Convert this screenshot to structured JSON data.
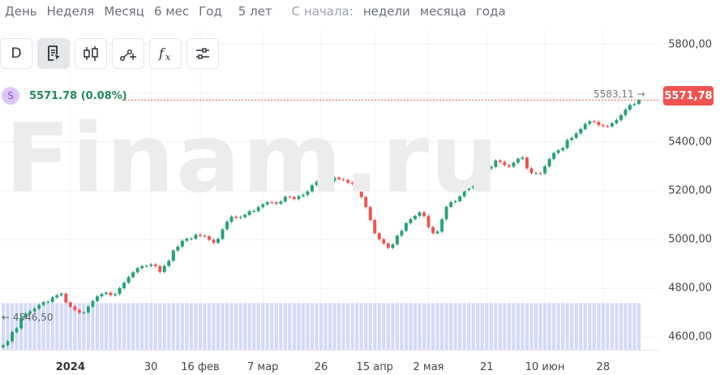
{
  "period_bar": {
    "items": [
      {
        "label": "День",
        "muted": false
      },
      {
        "label": "Неделя",
        "muted": false
      },
      {
        "label": "Месяц",
        "muted": false
      },
      {
        "label": "6 мес",
        "muted": false
      },
      {
        "label": "Год",
        "muted": false
      },
      {
        "label": "5 лет",
        "muted": false
      },
      {
        "label": "С начала:",
        "muted": true
      },
      {
        "label": "недели",
        "muted": false
      },
      {
        "label": "месяца",
        "muted": false
      },
      {
        "label": "года",
        "muted": false
      }
    ]
  },
  "toolbar": {
    "interval_label": "D",
    "tools": [
      {
        "name": "interval-button",
        "icon": "letter-d",
        "active": false
      },
      {
        "name": "template-button",
        "icon": "document-cursor-icon",
        "active": true
      },
      {
        "name": "chart-type-button",
        "icon": "candlestick-icon",
        "active": false
      },
      {
        "name": "drawing-tools-button",
        "icon": "line-plus-icon",
        "active": false
      },
      {
        "name": "indicators-button",
        "icon": "fx-icon",
        "active": false
      },
      {
        "name": "settings-button",
        "icon": "sliders-icon",
        "active": false
      }
    ]
  },
  "watermark": "Finam.ru",
  "legend": {
    "symbol_badge": "S",
    "value": "5571.78 (0.08%)"
  },
  "price_tag": "5571,78",
  "high_label": "5583,11 →",
  "low_label": "← 4546,50",
  "colors": {
    "up": "#26a17a",
    "down": "#ef5350",
    "volume": "#d3d9fa",
    "price_line": "#ef5350",
    "badge_bg": "#dcc8f5"
  },
  "chart_data": {
    "type": "candlestick",
    "ylim": [
      4548,
      5862
    ],
    "y_ticks": [
      "5800,00",
      "5600,00",
      "5400,00",
      "5200,00",
      "5000,00",
      "4800,00",
      "4600,00"
    ],
    "y_tick_values": [
      5800,
      5600,
      5400,
      5200,
      5000,
      4800,
      4600
    ],
    "x_ticks": [
      {
        "label": "2024",
        "index": 15,
        "bold": true
      },
      {
        "label": "30",
        "index": 33,
        "bold": false
      },
      {
        "label": "16 фев",
        "index": 44,
        "bold": false
      },
      {
        "label": "7 мар",
        "index": 58,
        "bold": false
      },
      {
        "label": "26",
        "index": 71,
        "bold": false
      },
      {
        "label": "15 апр",
        "index": 83,
        "bold": false
      },
      {
        "label": "2 мая",
        "index": 95,
        "bold": false
      },
      {
        "label": "21",
        "index": 108,
        "bold": false
      },
      {
        "label": "10 июн",
        "index": 121,
        "bold": false
      },
      {
        "label": "28",
        "index": 134,
        "bold": false
      }
    ],
    "close_values": [
      4567,
      4583,
      4621,
      4636,
      4680,
      4697,
      4706,
      4717,
      4732,
      4743,
      4745,
      4763,
      4772,
      4778,
      4742,
      4725,
      4711,
      4700,
      4701,
      4725,
      4748,
      4767,
      4777,
      4782,
      4772,
      4777,
      4801,
      4823,
      4846,
      4866,
      4883,
      4891,
      4892,
      4898,
      4891,
      4867,
      4892,
      4913,
      4955,
      4971,
      4995,
      5003,
      5004,
      5020,
      5015,
      5013,
      4999,
      4987,
      5003,
      5042,
      5073,
      5094,
      5089,
      5092,
      5101,
      5116,
      5117,
      5133,
      5144,
      5153,
      5152,
      5147,
      5156,
      5175,
      5174,
      5166,
      5178,
      5183,
      5197,
      5223,
      5237,
      5234,
      5232,
      5240,
      5254,
      5247,
      5244,
      5233,
      5228,
      5201,
      5174,
      5133,
      5080,
      5026,
      5001,
      4984,
      4966,
      4980,
      5016,
      5036,
      5067,
      5084,
      5097,
      5111,
      5096,
      5051,
      5026,
      5033,
      5083,
      5134,
      5153,
      5157,
      5177,
      5203,
      5212,
      5218,
      5217,
      5253,
      5291,
      5298,
      5324,
      5318,
      5305,
      5299,
      5315,
      5331,
      5336,
      5292,
      5272,
      5272,
      5271,
      5300,
      5330,
      5355,
      5366,
      5375,
      5408,
      5417,
      5435,
      5453,
      5474,
      5485,
      5482,
      5469,
      5465,
      5464,
      5477,
      5490,
      5510,
      5533,
      5552,
      5556,
      5572
    ],
    "volume_pct": [
      0.38,
      0.38,
      0.38,
      0.38,
      0.38,
      0.38,
      0.38,
      0.38,
      0.38,
      0.38,
      0.38,
      0.38,
      0.38,
      0.38,
      0.38,
      0.38,
      0.38,
      0.38,
      0.38,
      0.38,
      0.38,
      0.38,
      0.38,
      0.38,
      0.38,
      0.38,
      0.38,
      0.38,
      0.38,
      0.38,
      0.38,
      0.38,
      0.38,
      0.38,
      0.38,
      0.38,
      0.38,
      0.38,
      0.38,
      0.38,
      0.38,
      0.38,
      0.38,
      0.38,
      0.38,
      0.38,
      0.38,
      0.38,
      0.38,
      0.38,
      0.38,
      0.38,
      0.38,
      0.38,
      0.38,
      0.38,
      0.38,
      0.38,
      0.38,
      0.38,
      0.38,
      0.38,
      0.38,
      0.38,
      0.38,
      0.38,
      0.38,
      0.38,
      0.38,
      0.38,
      0.38,
      0.38,
      0.38,
      0.38,
      0.38,
      0.38,
      0.38,
      0.38,
      0.38,
      0.38,
      0.38,
      0.38,
      0.38,
      0.38,
      0.38,
      0.38,
      0.38,
      0.38,
      0.38,
      0.38,
      0.38,
      0.38,
      0.38,
      0.38,
      0.38,
      0.38,
      0.38,
      0.38,
      0.38,
      0.38,
      0.38,
      0.38,
      0.38,
      0.38,
      0.38,
      0.38,
      0.38,
      0.38,
      0.38,
      0.38,
      0.38,
      0.38,
      0.38,
      0.38,
      0.38,
      0.38,
      0.38,
      0.38,
      0.38,
      0.38,
      0.38,
      0.38,
      0.38,
      0.38,
      0.38,
      0.38,
      0.38,
      0.38,
      0.38,
      0.38,
      0.38,
      0.38,
      0.38,
      0.38,
      0.38,
      0.38,
      0.38,
      0.38,
      0.38,
      0.38,
      0.38,
      0.38,
      0.38
    ],
    "last_close": 5571.78,
    "high": 5583.11,
    "low": 4546.5
  }
}
